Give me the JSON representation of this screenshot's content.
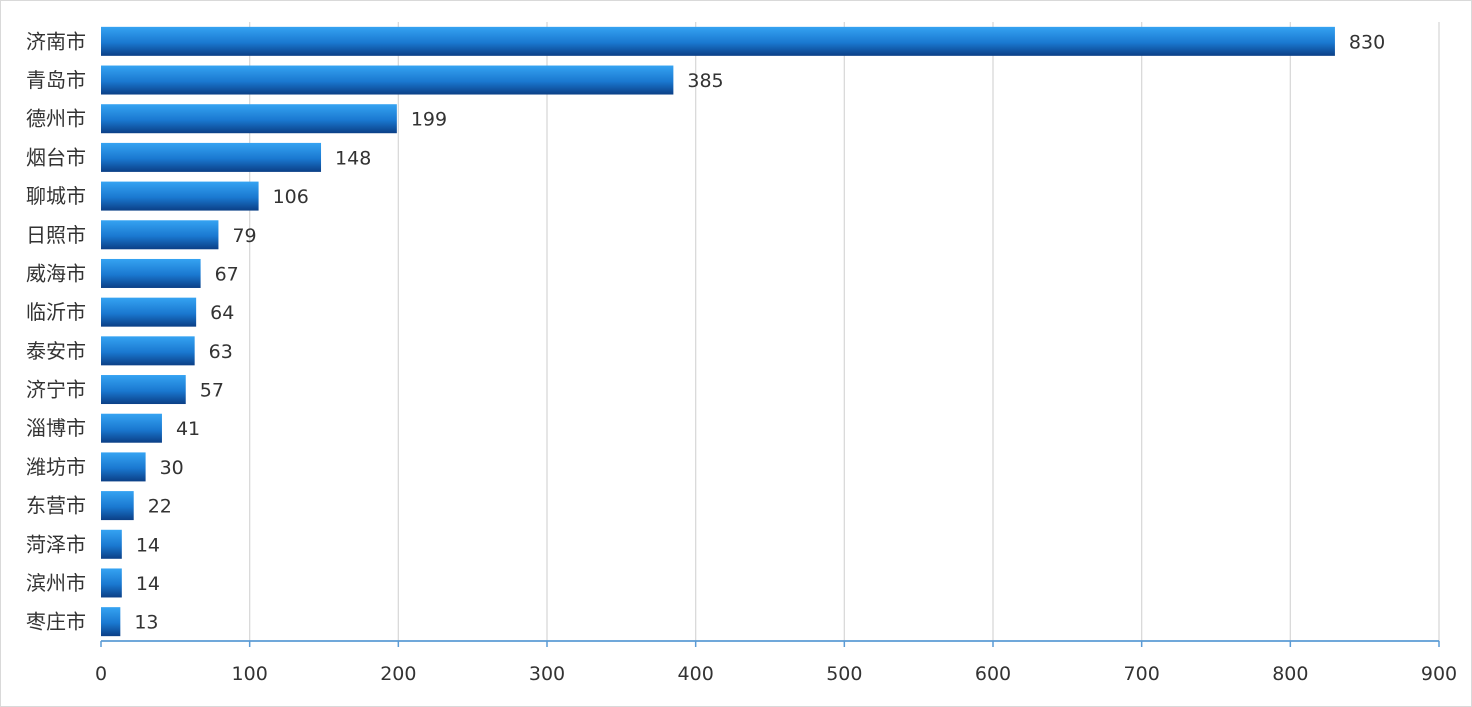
{
  "chart_data": {
    "type": "bar",
    "orientation": "horizontal",
    "categories": [
      "济南市",
      "青岛市",
      "德州市",
      "烟台市",
      "聊城市",
      "日照市",
      "威海市",
      "临沂市",
      "泰安市",
      "济宁市",
      "淄博市",
      "潍坊市",
      "东营市",
      "菏泽市",
      "滨州市",
      "枣庄市"
    ],
    "values": [
      830,
      385,
      199,
      148,
      106,
      79,
      67,
      64,
      63,
      57,
      41,
      30,
      22,
      14,
      14,
      13
    ],
    "xlim": [
      0,
      900
    ],
    "xticks": [
      0,
      100,
      200,
      300,
      400,
      500,
      600,
      700,
      800,
      900
    ],
    "grid": true,
    "data_labels": true,
    "title": "",
    "xlabel": "",
    "ylabel": "",
    "colors": {
      "bar_light": "#35a3f2",
      "bar_mid": "#1a78d0",
      "bar_dark": "#0b3f86",
      "grid": "#d9d9d9",
      "axis": "#5b9bd5",
      "text": "#333333"
    }
  }
}
